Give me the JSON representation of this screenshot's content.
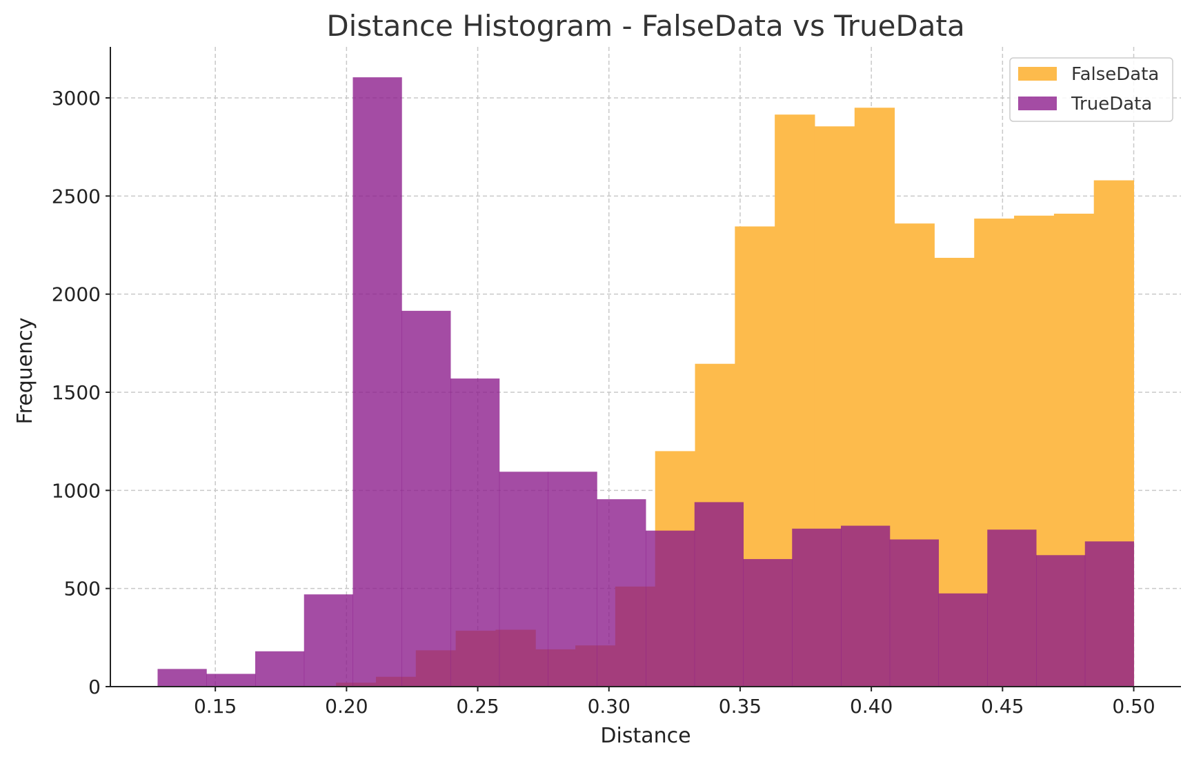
{
  "chart_data": {
    "type": "bar",
    "title": "Distance Histogram - FalseData vs TrueData",
    "xlabel": "Distance",
    "ylabel": "Frequency",
    "xlim": [
      0.11,
      0.518
    ],
    "ylim": [
      0,
      3260
    ],
    "x_ticks": [
      0.15,
      0.2,
      0.25,
      0.3,
      0.35,
      0.4,
      0.45,
      0.5
    ],
    "x_tick_labels": [
      "0.15",
      "0.20",
      "0.25",
      "0.30",
      "0.35",
      "0.40",
      "0.45",
      "0.50"
    ],
    "y_ticks": [
      0,
      500,
      1000,
      1500,
      2000,
      2500,
      3000
    ],
    "y_tick_labels": [
      "0",
      "500",
      "1000",
      "1500",
      "2000",
      "2500",
      "3000"
    ],
    "grid": true,
    "legend_position": "top-right",
    "series": [
      {
        "name": "FalseData",
        "color": "#fdbb4c",
        "opacity": 1.0,
        "bin_edges": [
          0.196,
          0.2112,
          0.2264,
          0.2416,
          0.2568,
          0.272,
          0.2872,
          0.3024,
          0.3176,
          0.3328,
          0.348,
          0.3632,
          0.3784,
          0.3936,
          0.4088,
          0.424,
          0.4392,
          0.4544,
          0.4696,
          0.4848,
          0.5
        ],
        "values": [
          20,
          50,
          185,
          285,
          290,
          190,
          210,
          510,
          1200,
          1645,
          2345,
          2915,
          2855,
          2950,
          2360,
          2185,
          2385,
          2400,
          2410,
          2580
        ]
      },
      {
        "name": "TrueData",
        "color": "#8b1a8b",
        "opacity": 0.78,
        "bin_edges": [
          0.128,
          0.1466,
          0.1652,
          0.1838,
          0.2024,
          0.221,
          0.2396,
          0.2582,
          0.2768,
          0.2954,
          0.314,
          0.3326,
          0.3512,
          0.3698,
          0.3884,
          0.407,
          0.4256,
          0.4442,
          0.4628,
          0.4814,
          0.5
        ],
        "values": [
          90,
          65,
          180,
          470,
          3105,
          1915,
          1570,
          1095,
          1095,
          955,
          795,
          940,
          650,
          805,
          820,
          750,
          475,
          800,
          670,
          740
        ]
      }
    ]
  }
}
